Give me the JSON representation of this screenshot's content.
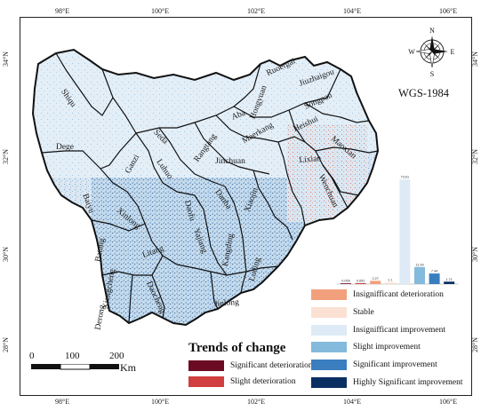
{
  "map": {
    "crs": "WGS-1984",
    "lon_ticks": [
      "98°E",
      "100°E",
      "102°E",
      "104°E",
      "106°E"
    ],
    "lat_ticks": [
      "34°N",
      "32°N",
      "30°N",
      "28°N"
    ],
    "compass": {
      "n": "N",
      "s": "S",
      "e": "E",
      "w": "W"
    },
    "regions": [
      "Shiqu",
      "Ruoergai",
      "Jiuzhaigou",
      "Aba",
      "Hongyuan",
      "Songpan",
      "Seda",
      "Rangtang",
      "Maerkang",
      "Heishui",
      "Maoxian",
      "Dege",
      "Ganzi",
      "Luhuo",
      "Jinchuan",
      "Lixian",
      "Wenchuan",
      "Baiyu",
      "Xinlong",
      "Daofu",
      "Danba",
      "Xiaojin",
      "Batang",
      "Litang",
      "Yajiang",
      "Kangding",
      "Luding",
      "Xiangcheng",
      "Daocheng",
      "Jiulong",
      "Derong"
    ]
  },
  "scale": {
    "ticks": [
      "0",
      "100",
      "200"
    ],
    "unit": "Km"
  },
  "legend": {
    "title": "Trends of change",
    "items": [
      {
        "label": "Significant deterioration",
        "color": "#6b0a22"
      },
      {
        "label": "Slight deterioration",
        "color": "#d13f3f"
      },
      {
        "label": "Insignifficant deterioration",
        "color": "#f2a07c"
      },
      {
        "label": "Stable",
        "color": "#fbe1d3"
      },
      {
        "label": "Insignifficant improvement",
        "color": "#deebf6"
      },
      {
        "label": "Slight improvement",
        "color": "#84badb"
      },
      {
        "label": "Significant improvement",
        "color": "#3a7ec0"
      },
      {
        "label": "Highly Significant improvement",
        "color": "#0a2f63"
      }
    ]
  },
  "chart_data": {
    "type": "bar",
    "categories": [
      "Significant deterioration",
      "Slight deterioration",
      "Insignifficant deterioration",
      "Stable",
      "Insignifficant improvement",
      "Slight improvement",
      "Significant improvement",
      "Highly Significant improvement"
    ],
    "values": [
      0.059,
      0.652,
      2.27,
      1.1,
      73.61,
      11.99,
      7.44,
      1.71
    ],
    "value_labels": [
      "0.059",
      "0.652",
      "2.27",
      "1.1",
      "73.61",
      "11.99",
      "7.44",
      "1.71"
    ],
    "colors": [
      "#6b0a22",
      "#d13f3f",
      "#f2a07c",
      "#fbe1d3",
      "#deebf6",
      "#84badb",
      "#3a7ec0",
      "#0a2f63"
    ],
    "ylim": [
      0,
      75
    ]
  }
}
